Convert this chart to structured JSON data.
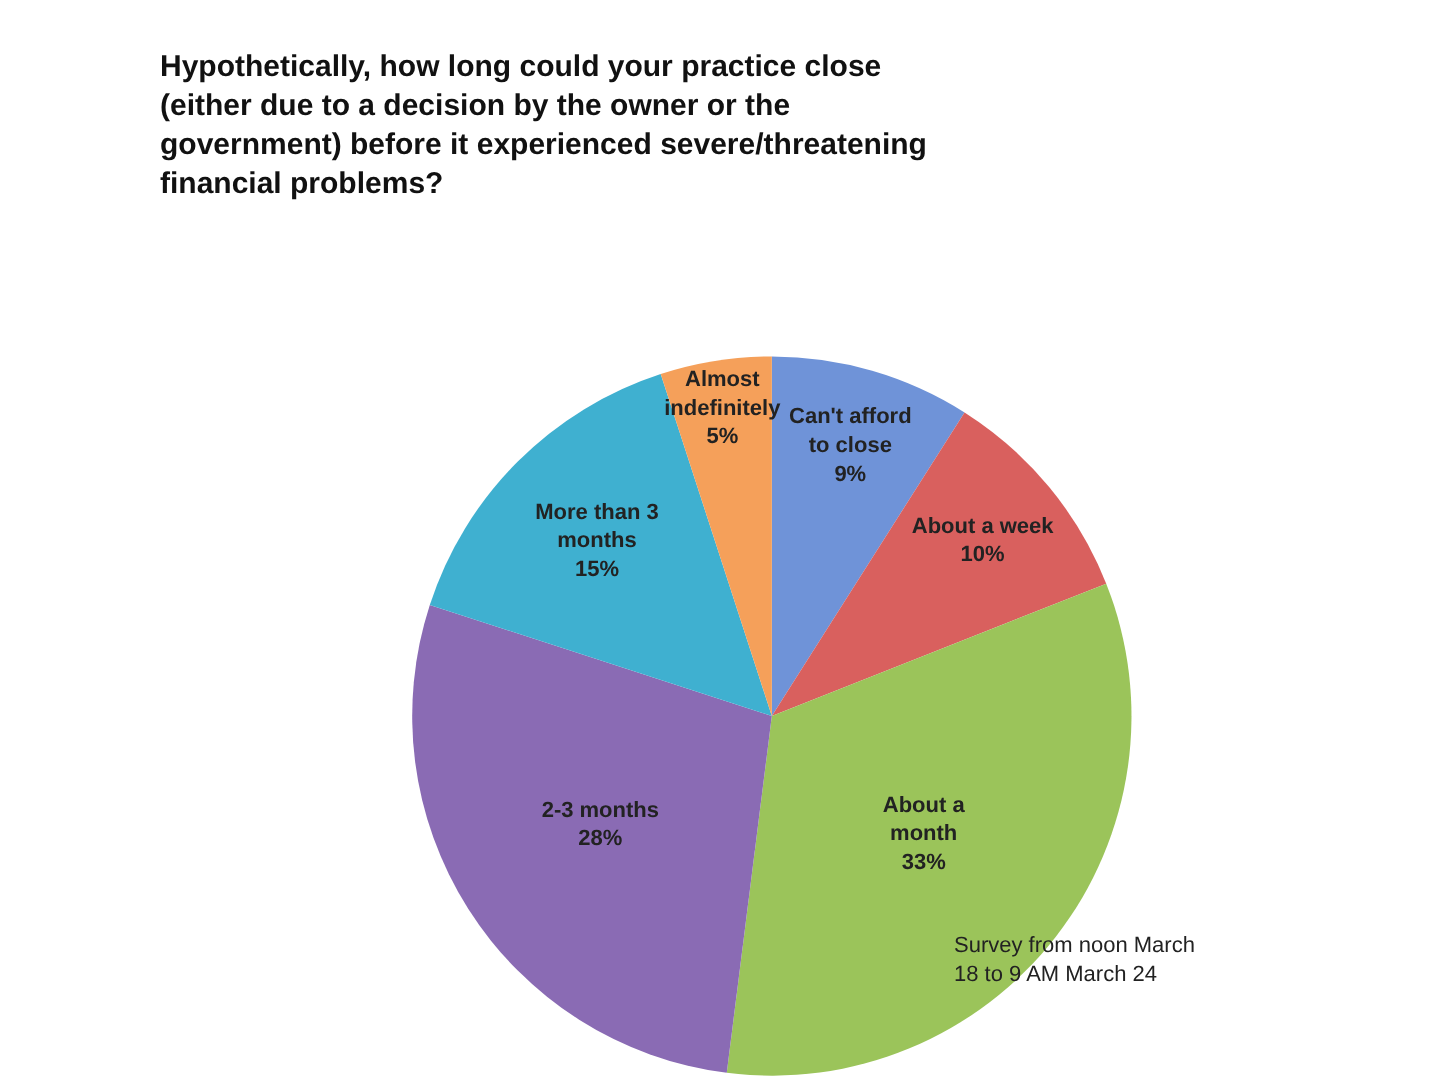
{
  "chart_data": {
    "type": "pie",
    "title": "Hypothetically, how long could your practice close (either due to a decision by the owner or the government) before it experienced severe/threatening financial problems?",
    "categories": [
      "Can't afford to close",
      "About a week",
      "About a month",
      "2-3 months",
      "More than 3 months",
      "Almost indefinitely"
    ],
    "values": [
      9,
      10,
      33,
      28,
      15,
      5
    ],
    "colors": [
      "#6f93d8",
      "#d9605e",
      "#9bc45a",
      "#8a6bb4",
      "#3fb0d0",
      "#f5a05a"
    ],
    "value_labels": [
      "9%",
      "10%",
      "33%",
      "28%",
      "15%",
      "5%"
    ],
    "legend": false,
    "annotations": [
      "Survey from noon March 18 to 9 AM March 24"
    ]
  }
}
